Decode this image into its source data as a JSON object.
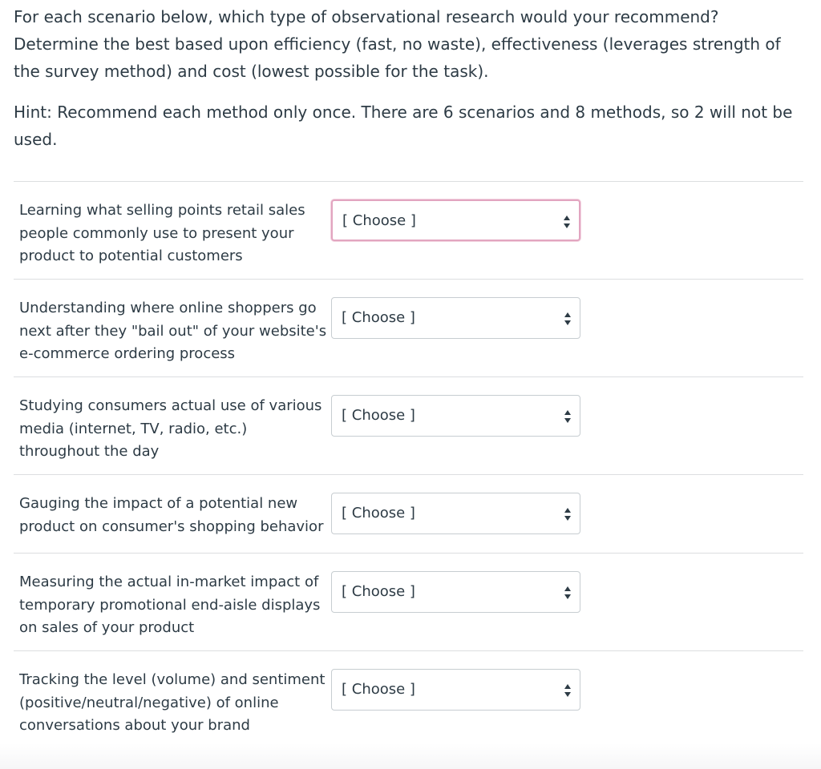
{
  "prompt": {
    "instructions": "For each scenario below, which type of observational research would your recommend? Determine the best based upon efficiency (fast, no waste), effectiveness (leverages strength of the survey method) and cost (lowest possible for the task).",
    "hint": "Hint: Recommend each method only once.  There are 6 scenarios and 8 methods, so 2 will not be used."
  },
  "questions": [
    {
      "text": "Learning what selling points retail sales people commonly use to present your product to potential customers",
      "selected": "[ Choose ]",
      "icon": "select-arrows-icon"
    },
    {
      "text": "Understanding where online shoppers go next after they \"bail out\" of your website's e-commerce ordering process",
      "selected": "[ Choose ]",
      "icon": "select-arrows-icon"
    },
    {
      "text": "Studying consumers actual use of various media (internet, TV, radio, etc.) throughout the day",
      "selected": "[ Choose ]",
      "icon": "select-arrows-icon"
    },
    {
      "text": "Gauging the impact of a potential new product on consumer's shopping behavior",
      "selected": "[ Choose ]",
      "icon": "select-arrows-icon"
    },
    {
      "text": "Measuring the actual in-market impact of temporary promotional end-aisle displays on sales of your product",
      "selected": "[ Choose ]",
      "icon": "select-arrows-icon"
    },
    {
      "text": "Tracking the level (volume) and sentiment (positive/neutral/negative) of online conversations about your brand",
      "selected": "[ Choose ]",
      "icon": "select-arrows-icon"
    }
  ],
  "colors": {
    "text": "#2d3b45",
    "divider": "#dcdee0",
    "select_border": "#c7cdd1",
    "focus_border": "#e2a5c0"
  }
}
